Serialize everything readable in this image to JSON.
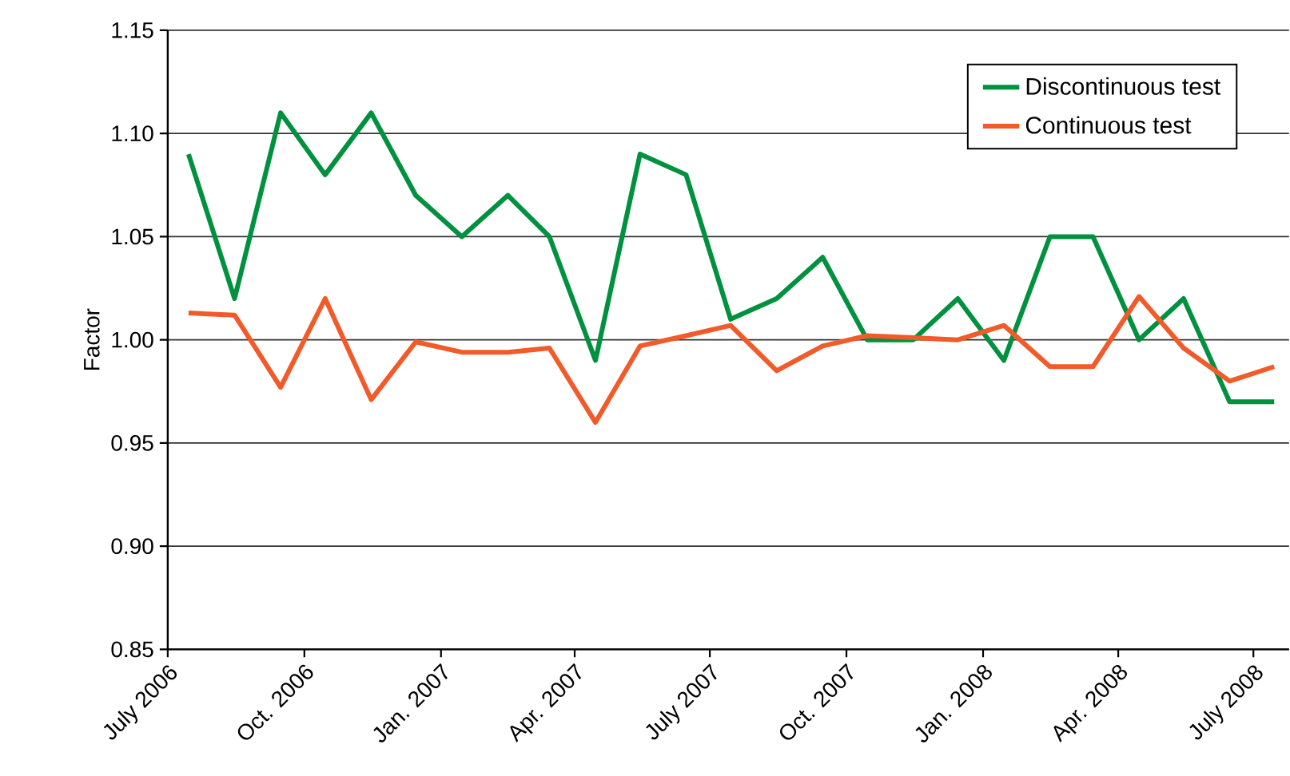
{
  "chart_data": {
    "type": "line",
    "ylabel": "Factor",
    "x": [
      "2006-07-15",
      "2006-08-15",
      "2006-09-15",
      "2006-10-15",
      "2006-11-15",
      "2006-12-15",
      "2007-01-15",
      "2007-02-15",
      "2007-03-15",
      "2007-04-15",
      "2007-05-15",
      "2007-06-15",
      "2007-07-15",
      "2007-08-15",
      "2007-09-15",
      "2007-10-15",
      "2007-11-15",
      "2007-12-15",
      "2008-01-15",
      "2008-02-15",
      "2008-03-15",
      "2008-04-15",
      "2008-05-15",
      "2008-06-15",
      "2008-07-15"
    ],
    "series": [
      {
        "name": "Discontinuous test",
        "color": "#00913f",
        "values": [
          1.09,
          1.02,
          1.11,
          1.08,
          1.11,
          1.07,
          1.05,
          1.07,
          1.05,
          0.99,
          1.09,
          1.08,
          1.01,
          1.02,
          1.04,
          1.0,
          1.0,
          1.02,
          0.99,
          1.05,
          1.05,
          1.0,
          1.02,
          0.97,
          0.97
        ]
      },
      {
        "name": "Continuous test",
        "color": "#f15a29",
        "values": [
          1.013,
          1.012,
          0.977,
          1.02,
          0.971,
          0.999,
          0.994,
          0.994,
          0.996,
          0.96,
          0.997,
          1.002,
          1.007,
          0.985,
          0.997,
          1.002,
          1.001,
          1.0,
          1.007,
          0.987,
          0.987,
          1.021,
          0.996,
          0.98,
          0.987
        ]
      }
    ],
    "xlim": [
      "2006-07-01",
      "2008-07-25"
    ],
    "xticks": [
      {
        "value": "2006-07-01",
        "label": "July 2006"
      },
      {
        "value": "2006-10-01",
        "label": "Oct. 2006"
      },
      {
        "value": "2007-01-01",
        "label": "Jan. 2007"
      },
      {
        "value": "2007-04-01",
        "label": "Apr. 2007"
      },
      {
        "value": "2007-07-01",
        "label": "July 2007"
      },
      {
        "value": "2007-10-01",
        "label": "Oct. 2007"
      },
      {
        "value": "2008-01-01",
        "label": "Jan. 2008"
      },
      {
        "value": "2008-04-01",
        "label": "Apr. 2008"
      },
      {
        "value": "2008-07-01",
        "label": "July 2008"
      }
    ],
    "ylim": [
      0.85,
      1.15
    ],
    "yticks": [
      0.85,
      {
        "value": 0.9,
        "label": "0.90"
      },
      0.95,
      {
        "value": 1.0,
        "label": "1.00"
      },
      1.05,
      {
        "value": 1.1,
        "label": "1.10"
      },
      1.15
    ],
    "grid": "y",
    "legend": "top right",
    "marker": "none",
    "line_style": "solid"
  }
}
